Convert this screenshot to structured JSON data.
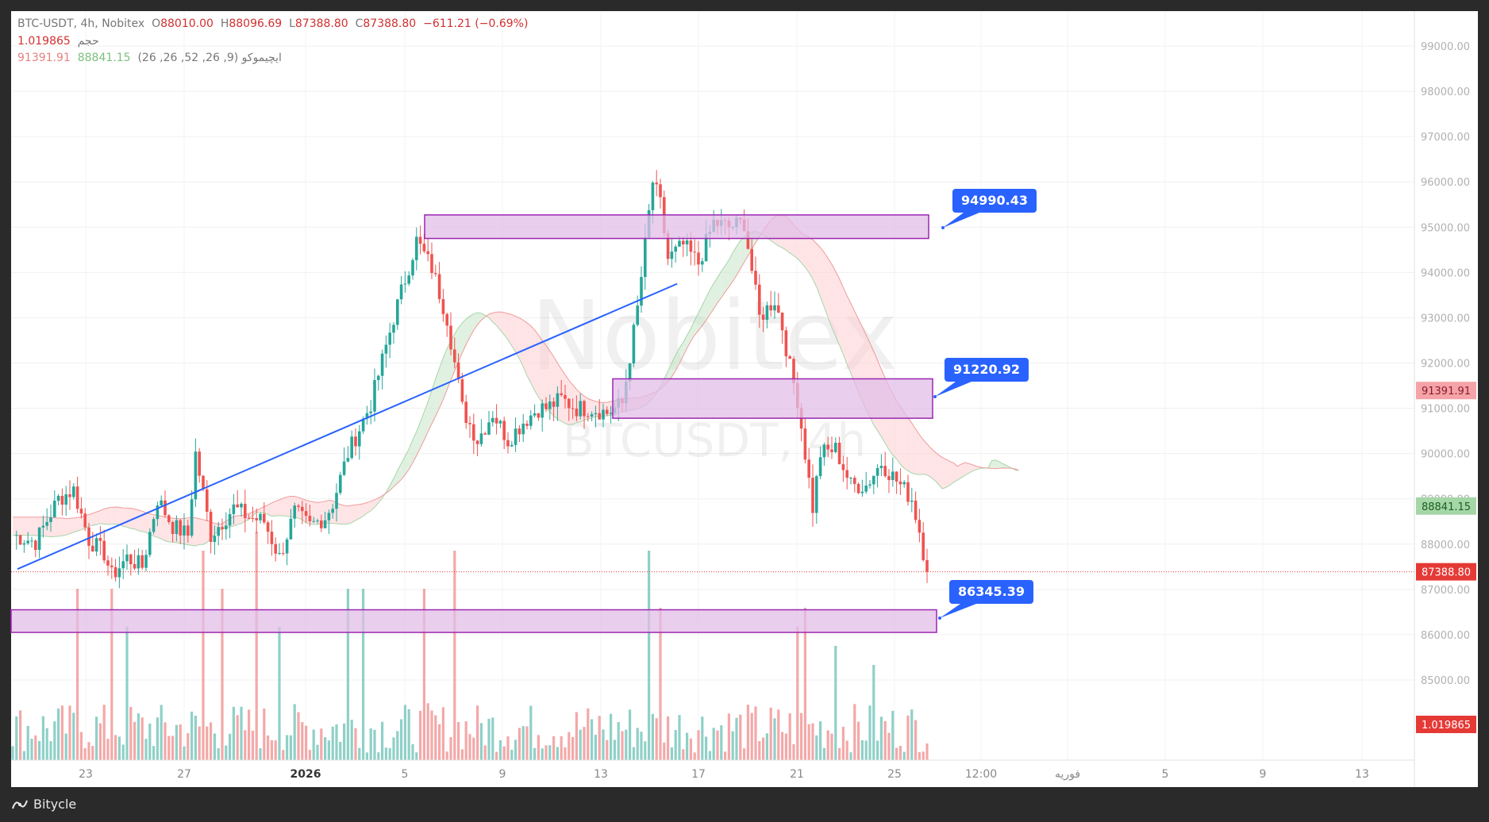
{
  "legend": {
    "symbol": "BTC-USDT, 4h, Nobitex",
    "open_label": "O",
    "open": "88010.00",
    "high_label": "H",
    "high": "88096.69",
    "low_label": "L",
    "low": "87388.80",
    "close_label": "C",
    "close": "87388.80",
    "change": "−611.21 (−0.69%)",
    "volume_label": "حجم",
    "volume_value": "1.019865",
    "ichimoku_label": "ایچیموکو (9, 26, 52, 26, 26)",
    "ichimoku_a": "88841.15",
    "ichimoku_b": "91391.91"
  },
  "watermark": {
    "title": "Nobitex",
    "subtitle": "BTCUSDT, 4h"
  },
  "price_axis": {
    "ticks": [
      "99000.00",
      "98000.00",
      "97000.00",
      "96000.00",
      "95000.00",
      "94000.00",
      "93000.00",
      "92000.00",
      "91000.00",
      "90000.00",
      "89000.00",
      "88000.00",
      "87000.00",
      "86000.00",
      "85000.00"
    ],
    "tags": {
      "ichimoku_b": {
        "value": "91391.91",
        "price": 91391.91,
        "color": "#f4a3a8",
        "text_color": "#8b1c24"
      },
      "ichimoku_a": {
        "value": "88841.15",
        "price": 88841.15,
        "color": "#a5d6a7",
        "text_color": "#1b5e20"
      },
      "last": {
        "value": "87388.80",
        "price": 87388.8,
        "color": "#e53935",
        "text_color": "#ffffff"
      },
      "volume": {
        "value": "1.019865",
        "color": "#e53935",
        "text_color": "#ffffff"
      }
    }
  },
  "time_axis": {
    "labels": [
      "23",
      "27",
      "2026",
      "5",
      "9",
      "13",
      "17",
      "21",
      "25",
      "12:00",
      "فوریه",
      "5",
      "9",
      "13"
    ]
  },
  "annotations": [
    {
      "label": "94990.43",
      "price": 94990.43
    },
    {
      "label": "91220.92",
      "price": 91220.92
    },
    {
      "label": "86345.39",
      "price": 86345.39
    }
  ],
  "zones": [
    {
      "from": 94750,
      "to": 95270
    },
    {
      "from": 90780,
      "to": 91650
    },
    {
      "from": 86050,
      "to": 86550
    }
  ],
  "trendline": {
    "from": [
      0,
      87450
    ],
    "to": [
      174,
      93750
    ]
  },
  "colors": {
    "up": "#26a69a",
    "down": "#ef5350",
    "zone": "#e1bee7",
    "zone_border": "#9c27b0",
    "label": "#2962ff"
  },
  "footer": {
    "brand": "Bitycle"
  },
  "chart_data": {
    "type": "candlestick",
    "title": "BTC-USDT, 4h, Nobitex",
    "ylim": [
      84500,
      99500
    ],
    "waypoints": [
      [
        0,
        88200
      ],
      [
        6,
        88050
      ],
      [
        12,
        89000
      ],
      [
        16,
        89200
      ],
      [
        20,
        88100
      ],
      [
        24,
        87800
      ],
      [
        26,
        87300
      ],
      [
        30,
        87700
      ],
      [
        34,
        87500
      ],
      [
        38,
        89000
      ],
      [
        42,
        88400
      ],
      [
        46,
        88200
      ],
      [
        48,
        90000
      ],
      [
        52,
        88200
      ],
      [
        58,
        88800
      ],
      [
        62,
        88600
      ],
      [
        66,
        88500
      ],
      [
        70,
        87700
      ],
      [
        74,
        88700
      ],
      [
        78,
        88400
      ],
      [
        82,
        88600
      ],
      [
        84,
        88900
      ],
      [
        88,
        90000
      ],
      [
        94,
        91100
      ],
      [
        100,
        93000
      ],
      [
        106,
        94700
      ],
      [
        110,
        94100
      ],
      [
        114,
        93000
      ],
      [
        118,
        91000
      ],
      [
        122,
        90300
      ],
      [
        126,
        90900
      ],
      [
        130,
        90300
      ],
      [
        134,
        90700
      ],
      [
        138,
        91000
      ],
      [
        140,
        91000
      ],
      [
        144,
        91200
      ],
      [
        148,
        91000
      ],
      [
        152,
        91000
      ],
      [
        156,
        90900
      ],
      [
        160,
        91100
      ],
      [
        164,
        93200
      ],
      [
        168,
        96000
      ],
      [
        170,
        95500
      ],
      [
        172,
        94300
      ],
      [
        176,
        94600
      ],
      [
        180,
        94200
      ],
      [
        184,
        95100
      ],
      [
        188,
        95000
      ],
      [
        192,
        95100
      ],
      [
        196,
        93000
      ],
      [
        200,
        93400
      ],
      [
        202,
        92800
      ],
      [
        204,
        91900
      ],
      [
        206,
        91200
      ],
      [
        208,
        90000
      ],
      [
        210,
        88800
      ],
      [
        212,
        90000
      ],
      [
        216,
        90100
      ],
      [
        220,
        89300
      ],
      [
        224,
        89300
      ],
      [
        228,
        89800
      ],
      [
        232,
        89400
      ],
      [
        236,
        89000
      ],
      [
        238,
        88300
      ],
      [
        240,
        87388.8
      ]
    ],
    "volume_max": 10,
    "volume_spikes": [
      [
        17,
        9
      ],
      [
        26,
        9
      ],
      [
        30,
        7
      ],
      [
        50,
        11
      ],
      [
        55,
        9
      ],
      [
        64,
        12
      ],
      [
        70,
        7
      ],
      [
        88,
        9
      ],
      [
        92,
        9
      ],
      [
        108,
        9
      ],
      [
        116,
        11
      ],
      [
        167,
        11
      ],
      [
        170,
        8
      ],
      [
        206,
        7
      ],
      [
        208,
        8
      ],
      [
        216,
        6
      ],
      [
        226,
        5
      ]
    ],
    "ichimoku_fill_last_x": 264
  }
}
